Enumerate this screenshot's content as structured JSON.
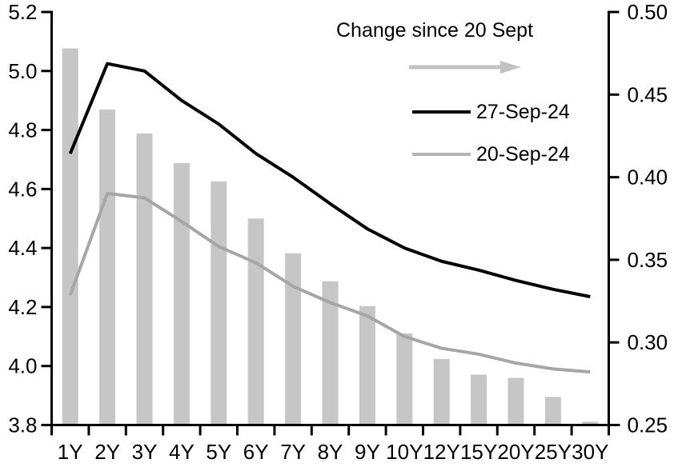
{
  "chart_data": {
    "type": "combo-bar-line-dual-axis",
    "categories": [
      "1Y",
      "2Y",
      "3Y",
      "4Y",
      "5Y",
      "6Y",
      "7Y",
      "8Y",
      "9Y",
      "10Y",
      "12Y",
      "15Y",
      "20Y",
      "25Y",
      "30Y"
    ],
    "series": [
      {
        "name": "Change since 20 Sept",
        "type": "bar",
        "axis": "right",
        "color": "#c6c6c6",
        "values": [
          0.478,
          0.441,
          0.4265,
          0.4085,
          0.3975,
          0.375,
          0.354,
          0.337,
          0.322,
          0.3055,
          0.29,
          0.2805,
          0.2785,
          0.267,
          0.252
        ]
      },
      {
        "name": "27-Sep-24",
        "type": "line",
        "axis": "left",
        "color": "#000000",
        "values": [
          4.72,
          5.025,
          5.0,
          4.9,
          4.82,
          4.72,
          4.64,
          4.55,
          4.465,
          4.4,
          4.355,
          4.325,
          4.29,
          4.26,
          4.235
        ]
      },
      {
        "name": "20-Sep-24",
        "type": "line",
        "axis": "left",
        "color": "#a6a6a6",
        "values": [
          4.24,
          4.585,
          4.57,
          4.49,
          4.405,
          4.35,
          4.27,
          4.215,
          4.17,
          4.1,
          4.06,
          4.04,
          4.01,
          3.99,
          3.98
        ]
      }
    ],
    "left_axis": {
      "min": 3.8,
      "max": 5.2,
      "ticks": [
        {
          "v": 5.2,
          "label": "5.2"
        },
        {
          "v": 5.0,
          "label": "5.0"
        },
        {
          "v": 4.8,
          "label": "4.8"
        },
        {
          "v": 4.6,
          "label": "4.6"
        },
        {
          "v": 4.4,
          "label": "4.4"
        },
        {
          "v": 4.2,
          "label": "4.2"
        },
        {
          "v": 4.0,
          "label": "4.0"
        },
        {
          "v": 3.8,
          "label": "3.8"
        }
      ]
    },
    "right_axis": {
      "min": 0.25,
      "max": 0.5,
      "ticks": [
        {
          "v": 0.5,
          "label": "0.50"
        },
        {
          "v": 0.45,
          "label": "0.45"
        },
        {
          "v": 0.4,
          "label": "0.40"
        },
        {
          "v": 0.35,
          "label": "0.35"
        },
        {
          "v": 0.3,
          "label": "0.30"
        },
        {
          "v": 0.25,
          "label": "0.25"
        }
      ]
    },
    "grid": false,
    "legend": {
      "position": "top-right-inside",
      "title": "Change since 20 Sept",
      "arrow_color": "#c2c2c2",
      "items": [
        {
          "label": "27-Sep-24",
          "color": "#000000"
        },
        {
          "label": "20-Sep-24",
          "color": "#b3b3b3"
        }
      ]
    }
  }
}
